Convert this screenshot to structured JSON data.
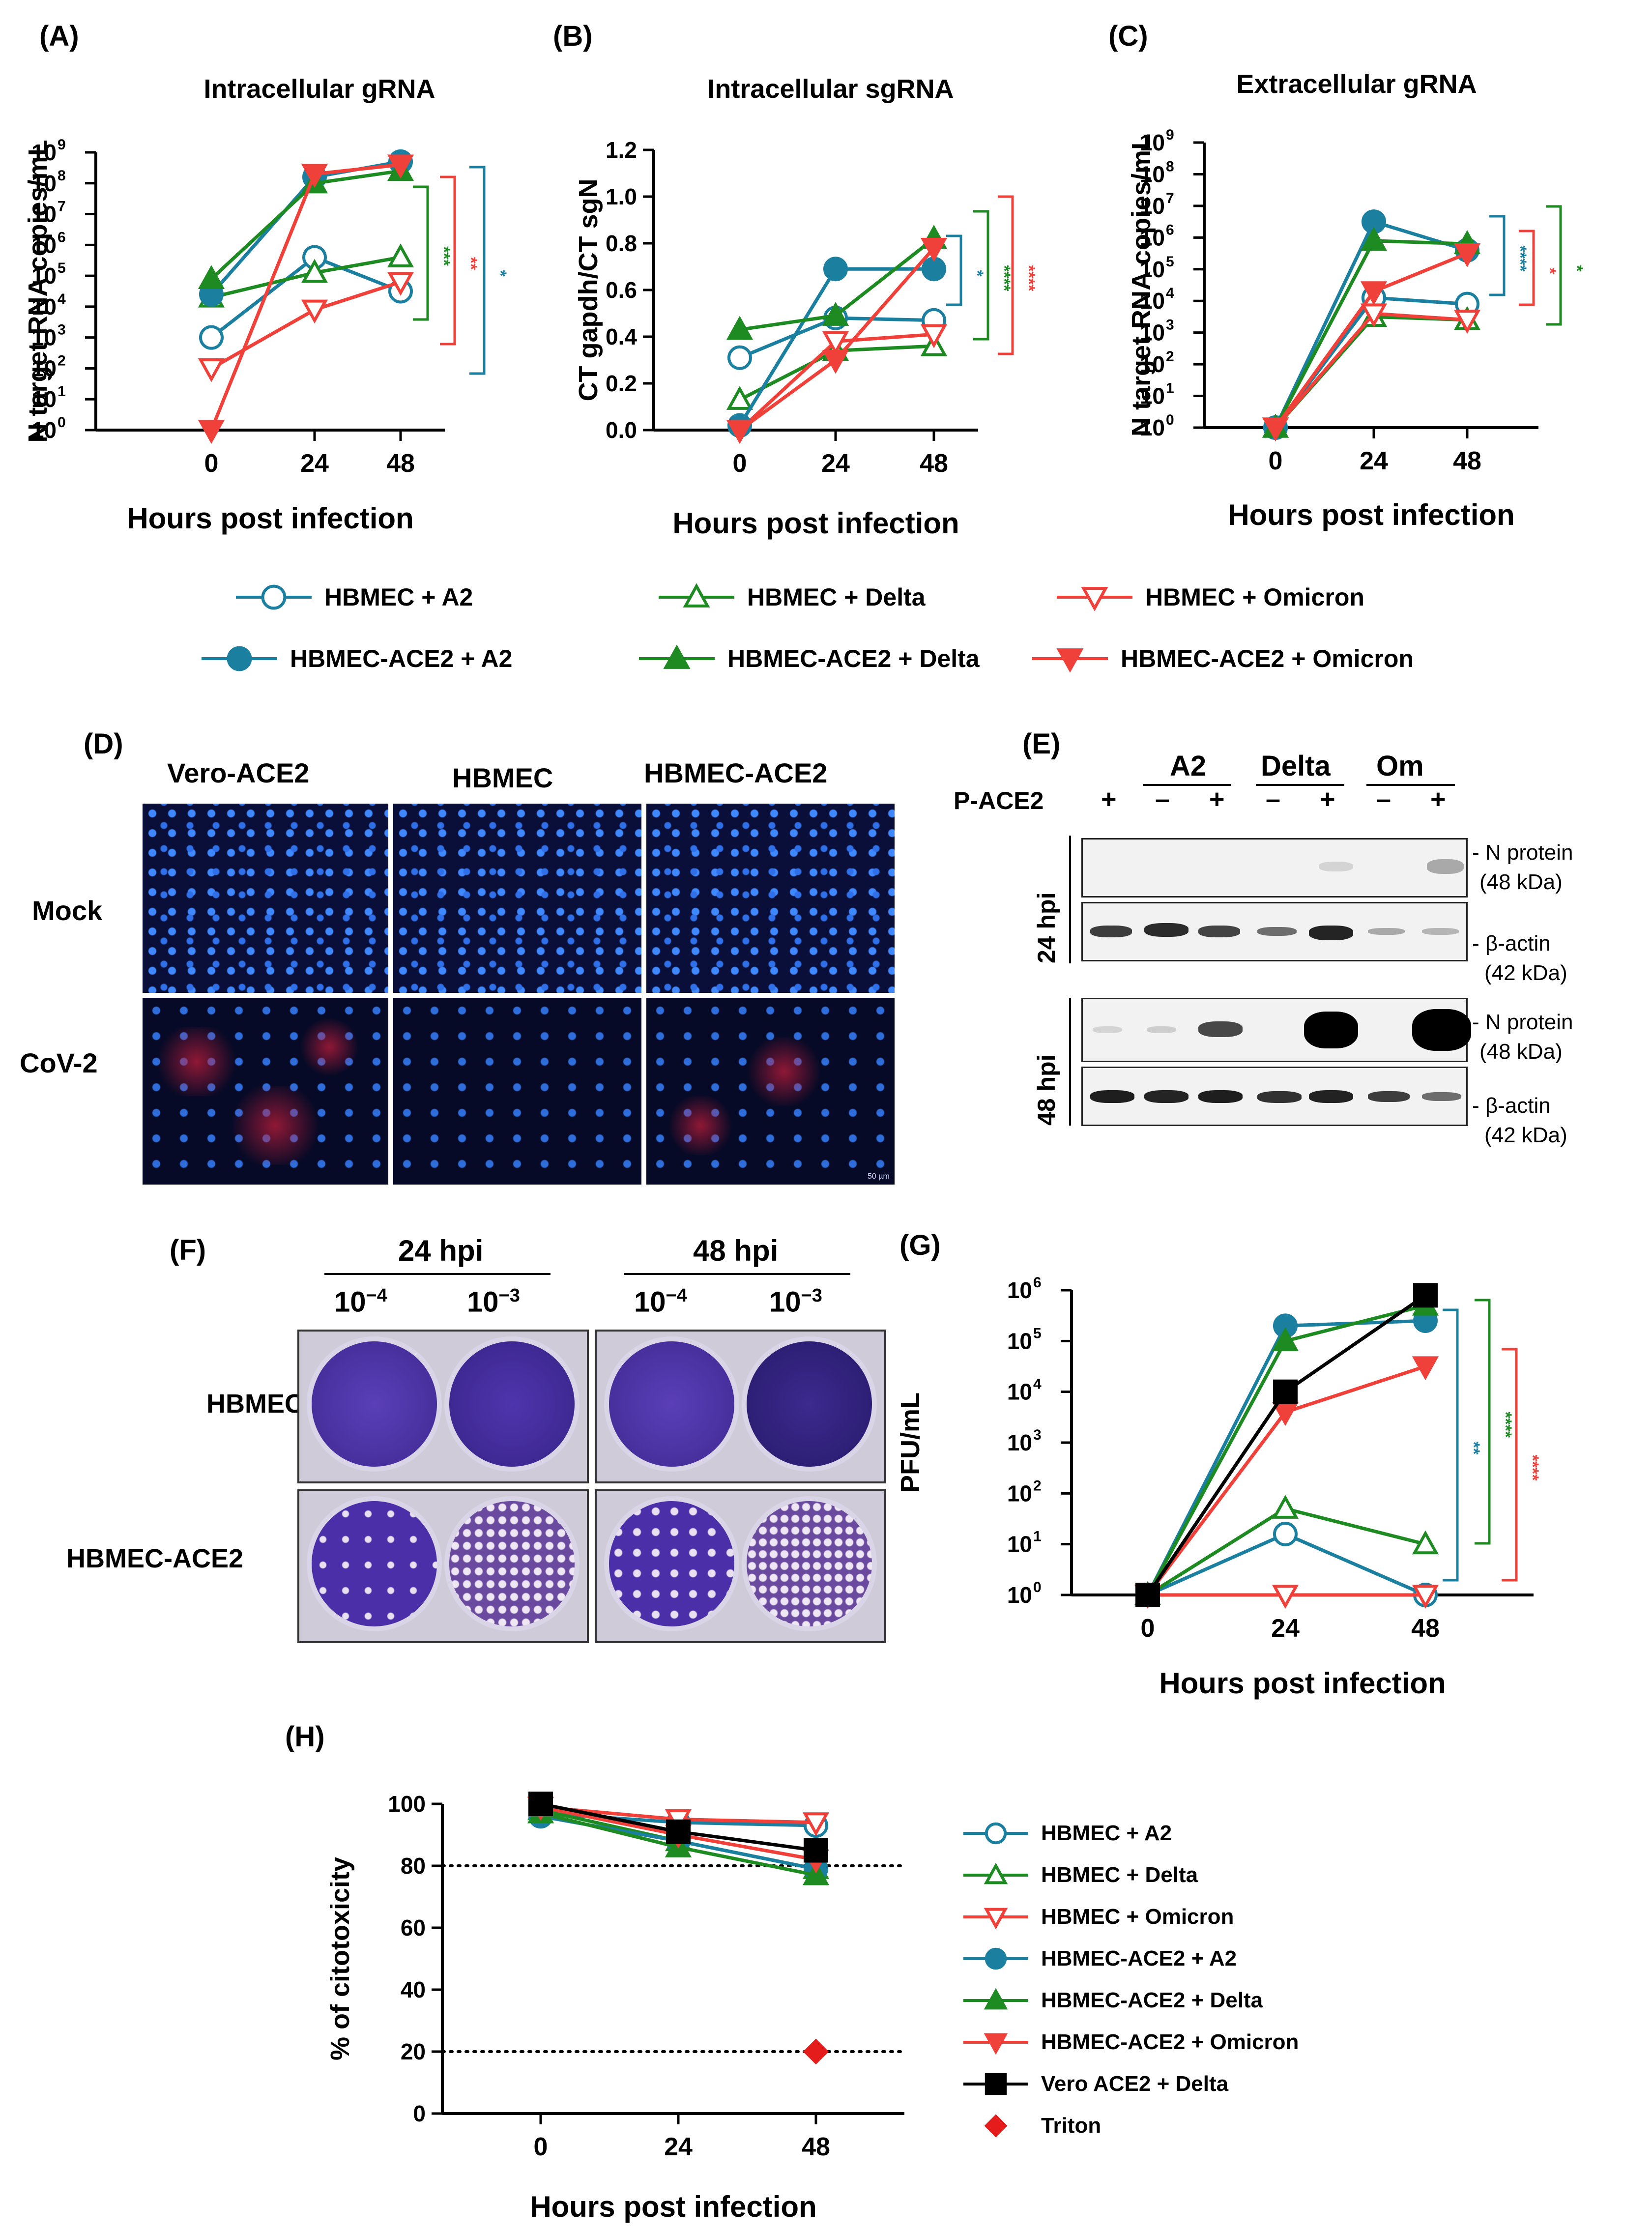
{
  "colors": {
    "a2": "#1b7fa0",
    "delta": "#1d8a22",
    "omicron": "#f0403a",
    "vero": "#000000",
    "triton": "#e51c1c"
  },
  "legend_main": {
    "items": [
      {
        "label": "HBMEC + A2",
        "series": "a2",
        "marker": "circle",
        "filled": false
      },
      {
        "label": "HBMEC + Delta",
        "series": "delta",
        "marker": "triangle-up",
        "filled": false
      },
      {
        "label": "HBMEC + Omicron",
        "series": "omicron",
        "marker": "triangle-down",
        "filled": false
      },
      {
        "label": "HBMEC-ACE2 + A2",
        "series": "a2",
        "marker": "circle",
        "filled": true
      },
      {
        "label": "HBMEC-ACE2 + Delta",
        "series": "delta",
        "marker": "triangle-up",
        "filled": true
      },
      {
        "label": "HBMEC-ACE2 + Omicron",
        "series": "omicron",
        "marker": "triangle-down",
        "filled": true
      }
    ]
  },
  "legend_h": {
    "items": [
      {
        "label": "HBMEC + A2",
        "series": "a2",
        "marker": "circle",
        "filled": false
      },
      {
        "label": "HBMEC + Delta",
        "series": "delta",
        "marker": "triangle-up",
        "filled": false
      },
      {
        "label": "HBMEC + Omicron",
        "series": "omicron",
        "marker": "triangle-down",
        "filled": false
      },
      {
        "label": "HBMEC-ACE2 + A2",
        "series": "a2",
        "marker": "circle",
        "filled": true
      },
      {
        "label": "HBMEC-ACE2 + Delta",
        "series": "delta",
        "marker": "triangle-up",
        "filled": true
      },
      {
        "label": "HBMEC-ACE2 + Omicron",
        "series": "omicron",
        "marker": "triangle-down",
        "filled": true
      },
      {
        "label": "Vero ACE2 + Delta",
        "series": "vero",
        "marker": "square",
        "filled": true
      },
      {
        "label": "Triton",
        "series": "triton",
        "marker": "diamond",
        "filled": true
      }
    ]
  },
  "panel_d": {
    "label": "(D)",
    "columns": [
      "Vero-ACE2",
      "HBMEC",
      "HBMEC-ACE2"
    ],
    "rows": [
      "Mock",
      "CoV-2"
    ],
    "scale_bar": "50 µm"
  },
  "panel_e": {
    "label": "(E)",
    "groups": [
      "A2",
      "Delta",
      "Om"
    ],
    "row_label": "P-ACE2",
    "signs": [
      "+",
      "–",
      "+",
      "–",
      "+",
      "–",
      "+"
    ],
    "timepoints": [
      "24 hpi",
      "48 hpi"
    ],
    "n_protein": "- N protein",
    "n_kda": "(48 kDa)",
    "actin": "- β-actin",
    "actin_kda": "(42 kDa)"
  },
  "panel_f": {
    "label": "(F)",
    "timepoints": [
      "24 hpi",
      "48 hpi"
    ],
    "dilutions": [
      "10",
      "−4",
      "10",
      "−3"
    ],
    "rows": [
      "HBMEC",
      "HBMEC-ACE2"
    ]
  },
  "chart_data": [
    {
      "id": "A",
      "label": "(A)",
      "type": "line",
      "title": "Intracellular gRNA",
      "xlabel": "Hours post infection",
      "ylabel": "N target RNA copies/mL",
      "yscale": "log",
      "ylim": [
        0,
        9
      ],
      "yticks": [
        0,
        1,
        2,
        3,
        4,
        5,
        6,
        7,
        8,
        9
      ],
      "x": [
        0,
        24,
        48
      ],
      "series": [
        {
          "name": "HBMEC + A2",
          "color": "a2",
          "marker": "circle",
          "filled": false,
          "log10": [
            3.0,
            5.6,
            4.5
          ]
        },
        {
          "name": "HBMEC + Delta",
          "color": "delta",
          "marker": "triangle-up",
          "filled": false,
          "log10": [
            4.3,
            5.1,
            5.6
          ]
        },
        {
          "name": "HBMEC + Omicron",
          "color": "omicron",
          "marker": "triangle-down",
          "filled": false,
          "log10": [
            2.0,
            3.9,
            4.8
          ]
        },
        {
          "name": "HBMEC-ACE2 + A2",
          "color": "a2",
          "marker": "circle",
          "filled": true,
          "log10": [
            4.4,
            8.2,
            8.7
          ]
        },
        {
          "name": "HBMEC-ACE2 + Delta",
          "color": "delta",
          "marker": "triangle-up",
          "filled": true,
          "log10": [
            4.9,
            8.0,
            8.4
          ]
        },
        {
          "name": "HBMEC-ACE2 + Omicron",
          "color": "omicron",
          "marker": "triangle-down",
          "filled": true,
          "log10": [
            0.0,
            8.3,
            8.6
          ]
        }
      ],
      "significance": [
        {
          "text": "***",
          "color": "delta"
        },
        {
          "text": "**",
          "color": "omicron"
        },
        {
          "text": "*",
          "color": "a2"
        }
      ]
    },
    {
      "id": "B",
      "label": "(B)",
      "type": "line",
      "title": "Intracellular sgRNA",
      "xlabel": "Hours post infection",
      "ylabel": "CT gapdh/CT sgN",
      "yscale": "linear",
      "ylim": [
        0,
        1.2
      ],
      "yticks": [
        "0.0",
        "0.2",
        "0.4",
        "0.6",
        "0.8",
        "1.0",
        "1.2"
      ],
      "x": [
        0,
        24,
        48
      ],
      "series": [
        {
          "name": "HBMEC + A2",
          "color": "a2",
          "marker": "circle",
          "filled": false,
          "values": [
            0.31,
            0.48,
            0.47
          ]
        },
        {
          "name": "HBMEC + Delta",
          "color": "delta",
          "marker": "triangle-up",
          "filled": false,
          "values": [
            0.13,
            0.34,
            0.36
          ]
        },
        {
          "name": "HBMEC + Omicron",
          "color": "omicron",
          "marker": "triangle-down",
          "filled": false,
          "values": [
            0.0,
            0.38,
            0.41
          ]
        },
        {
          "name": "HBMEC-ACE2 + A2",
          "color": "a2",
          "marker": "circle",
          "filled": true,
          "values": [
            0.02,
            0.69,
            0.69
          ]
        },
        {
          "name": "HBMEC-ACE2 + Delta",
          "color": "delta",
          "marker": "triangle-up",
          "filled": true,
          "values": [
            0.43,
            0.49,
            0.82
          ]
        },
        {
          "name": "HBMEC-ACE2 + Omicron",
          "color": "omicron",
          "marker": "triangle-down",
          "filled": true,
          "values": [
            0.0,
            0.3,
            0.78
          ]
        }
      ],
      "significance": [
        {
          "text": "*",
          "color": "a2"
        },
        {
          "text": "****",
          "color": "delta"
        },
        {
          "text": "****",
          "color": "omicron"
        }
      ]
    },
    {
      "id": "C",
      "label": "(C)",
      "type": "line",
      "title": "Extracellular gRNA",
      "xlabel": "Hours post infection",
      "ylabel": "N target RNA copies/mL",
      "yscale": "log",
      "ylim": [
        0,
        9
      ],
      "yticks": [
        0,
        1,
        2,
        3,
        4,
        5,
        6,
        7,
        8,
        9
      ],
      "x": [
        0,
        24,
        48
      ],
      "series": [
        {
          "name": "HBMEC + A2",
          "color": "a2",
          "marker": "circle",
          "filled": false,
          "log10": [
            0.0,
            4.1,
            3.9
          ]
        },
        {
          "name": "HBMEC + Delta",
          "color": "delta",
          "marker": "triangle-up",
          "filled": false,
          "log10": [
            0.0,
            3.5,
            3.4
          ]
        },
        {
          "name": "HBMEC + Omicron",
          "color": "omicron",
          "marker": "triangle-down",
          "filled": false,
          "log10": [
            0.0,
            3.6,
            3.4
          ]
        },
        {
          "name": "HBMEC-ACE2 + A2",
          "color": "a2",
          "marker": "circle",
          "filled": true,
          "log10": [
            0.0,
            6.5,
            5.6
          ]
        },
        {
          "name": "HBMEC-ACE2 + Delta",
          "color": "delta",
          "marker": "triangle-up",
          "filled": true,
          "log10": [
            0.0,
            5.9,
            5.8
          ]
        },
        {
          "name": "HBMEC-ACE2 + Omicron",
          "color": "omicron",
          "marker": "triangle-down",
          "filled": true,
          "log10": [
            0.0,
            4.3,
            5.5
          ]
        }
      ],
      "significance": [
        {
          "text": "****",
          "color": "a2"
        },
        {
          "text": "*",
          "color": "omicron"
        },
        {
          "text": "*",
          "color": "delta"
        }
      ]
    },
    {
      "id": "G",
      "label": "(G)",
      "type": "line",
      "title": "",
      "xlabel": "Hours post infection",
      "ylabel": "PFU/mL",
      "yscale": "log",
      "ylim": [
        0,
        6
      ],
      "yticks": [
        0,
        1,
        2,
        3,
        4,
        5,
        6
      ],
      "x": [
        0,
        24,
        48
      ],
      "series": [
        {
          "name": "HBMEC + A2",
          "color": "a2",
          "marker": "circle",
          "filled": false,
          "log10": [
            0.0,
            1.2,
            0.0
          ]
        },
        {
          "name": "HBMEC + Delta",
          "color": "delta",
          "marker": "triangle-up",
          "filled": false,
          "log10": [
            0.0,
            1.7,
            1.0
          ]
        },
        {
          "name": "HBMEC + Omicron",
          "color": "omicron",
          "marker": "triangle-down",
          "filled": false,
          "log10": [
            0.0,
            0.0,
            0.0
          ]
        },
        {
          "name": "HBMEC-ACE2 + A2",
          "color": "a2",
          "marker": "circle",
          "filled": true,
          "log10": [
            0.0,
            5.3,
            5.4
          ]
        },
        {
          "name": "HBMEC-ACE2 + Delta",
          "color": "delta",
          "marker": "triangle-up",
          "filled": true,
          "log10": [
            0.0,
            5.0,
            5.7
          ]
        },
        {
          "name": "HBMEC-ACE2 + Omicron",
          "color": "omicron",
          "marker": "triangle-down",
          "filled": true,
          "log10": [
            0.0,
            3.6,
            4.5
          ]
        },
        {
          "name": "Vero ACE2 + Delta",
          "color": "vero",
          "marker": "square",
          "filled": true,
          "log10": [
            0.0,
            4.0,
            5.9
          ]
        }
      ],
      "significance": [
        {
          "text": "**",
          "color": "a2"
        },
        {
          "text": "****",
          "color": "delta"
        },
        {
          "text": "****",
          "color": "omicron"
        }
      ]
    },
    {
      "id": "H",
      "label": "(H)",
      "type": "line",
      "title": "",
      "xlabel": "Hours post infection",
      "ylabel": "% of citotoxicity",
      "yscale": "linear",
      "ylim": [
        0,
        100
      ],
      "yticks": [
        0,
        20,
        40,
        60,
        80,
        100
      ],
      "x": [
        0,
        24,
        48
      ],
      "reference_lines": [
        80,
        20
      ],
      "series": [
        {
          "name": "HBMEC + A2",
          "color": "a2",
          "marker": "circle",
          "filled": false,
          "values": [
            97,
            94,
            93
          ]
        },
        {
          "name": "HBMEC + Delta",
          "color": "delta",
          "marker": "triangle-up",
          "filled": false,
          "values": [
            98,
            88,
            79
          ]
        },
        {
          "name": "HBMEC + Omicron",
          "color": "omicron",
          "marker": "triangle-down",
          "filled": false,
          "values": [
            99,
            95,
            94
          ]
        },
        {
          "name": "HBMEC-ACE2 + A2",
          "color": "a2",
          "marker": "circle",
          "filled": true,
          "values": [
            96,
            88,
            79
          ]
        },
        {
          "name": "HBMEC-ACE2 + Delta",
          "color": "delta",
          "marker": "triangle-up",
          "filled": true,
          "values": [
            97,
            86,
            77
          ]
        },
        {
          "name": "HBMEC-ACE2 + Omicron",
          "color": "omicron",
          "marker": "triangle-down",
          "filled": true,
          "values": [
            99,
            90,
            82
          ]
        },
        {
          "name": "Vero ACE2 + Delta",
          "color": "vero",
          "marker": "square",
          "filled": true,
          "values": [
            100,
            91,
            85
          ]
        },
        {
          "name": "Triton",
          "color": "triton",
          "marker": "diamond",
          "filled": true,
          "points": [
            [
              48,
              20
            ]
          ]
        }
      ]
    }
  ]
}
